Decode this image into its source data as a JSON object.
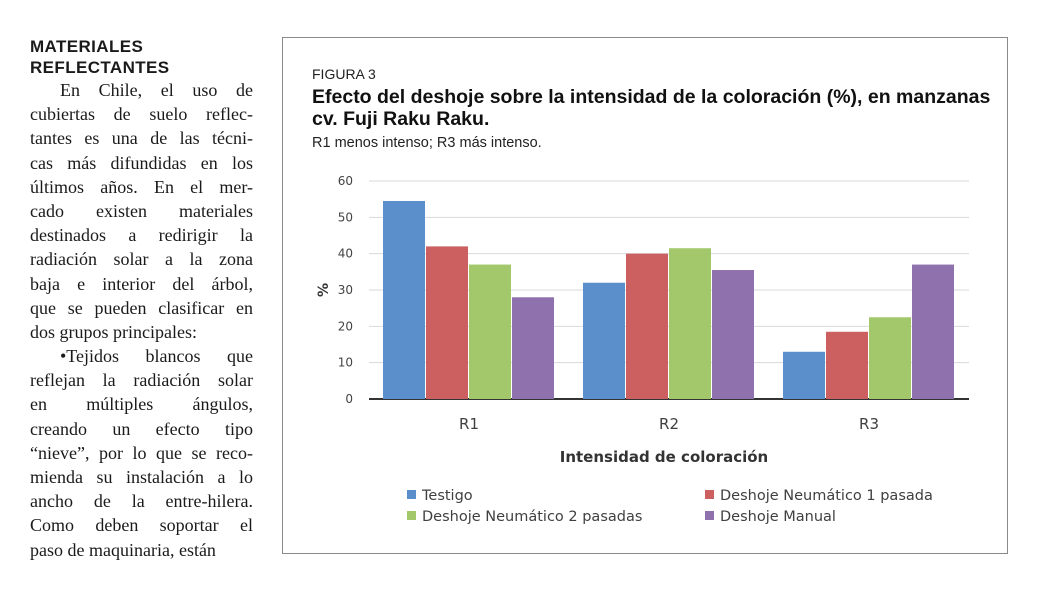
{
  "article": {
    "heading_line1": "MATERIALES",
    "heading_line2": "REFLECTANTES",
    "lines": [
      "En Chile, el uso de",
      "cubiertas de suelo reflec-",
      "tantes es una de las técni-",
      "cas más difundidas en los",
      "últimos años. En el mer-",
      "cado existen materiales",
      "destinados a redirigir la",
      "radiación solar a la zona",
      "baja e interior del árbol,",
      "que se pueden clasificar en",
      "dos grupos principales:",
      "•Tejidos blancos que",
      "reflejan la radiación solar",
      "en múltiples ángulos,",
      "creando un efecto tipo",
      "“nieve”, por lo que se reco-",
      "mienda su instalación a lo",
      "ancho de la entre-hilera.",
      "Como deben soportar el",
      "paso de maquinaria, están"
    ]
  },
  "figure": {
    "label": "FIGURA 3",
    "title": "Efecto del deshoje sobre la intensidad de la coloración (%), en manzanas cv. Fuji Raku Raku.",
    "subtitle": "R1 menos intenso; R3 más intenso."
  },
  "chart_data": {
    "type": "bar",
    "categories": [
      "R1",
      "R2",
      "R3"
    ],
    "series": [
      {
        "name": "Testigo",
        "color": "#5b8fcc",
        "values": [
          54.5,
          32,
          13
        ]
      },
      {
        "name": "Deshoje Neumático 1 pasada",
        "color": "#cc5f5f",
        "values": [
          42,
          40,
          18.5
        ]
      },
      {
        "name": "Deshoje Neumático 2 pasadas",
        "color": "#a2c86b",
        "values": [
          37,
          41.5,
          22.5
        ]
      },
      {
        "name": "Deshoje Manual",
        "color": "#8f72ad",
        "values": [
          28,
          35.5,
          37
        ]
      }
    ],
    "yticks": [
      "0",
      "10",
      "20",
      "30",
      "40",
      "50",
      "60"
    ],
    "ylim": [
      0,
      60
    ],
    "ylabel": "%",
    "xlabel": "Intensidad de coloración",
    "legend_position": "bottom"
  }
}
